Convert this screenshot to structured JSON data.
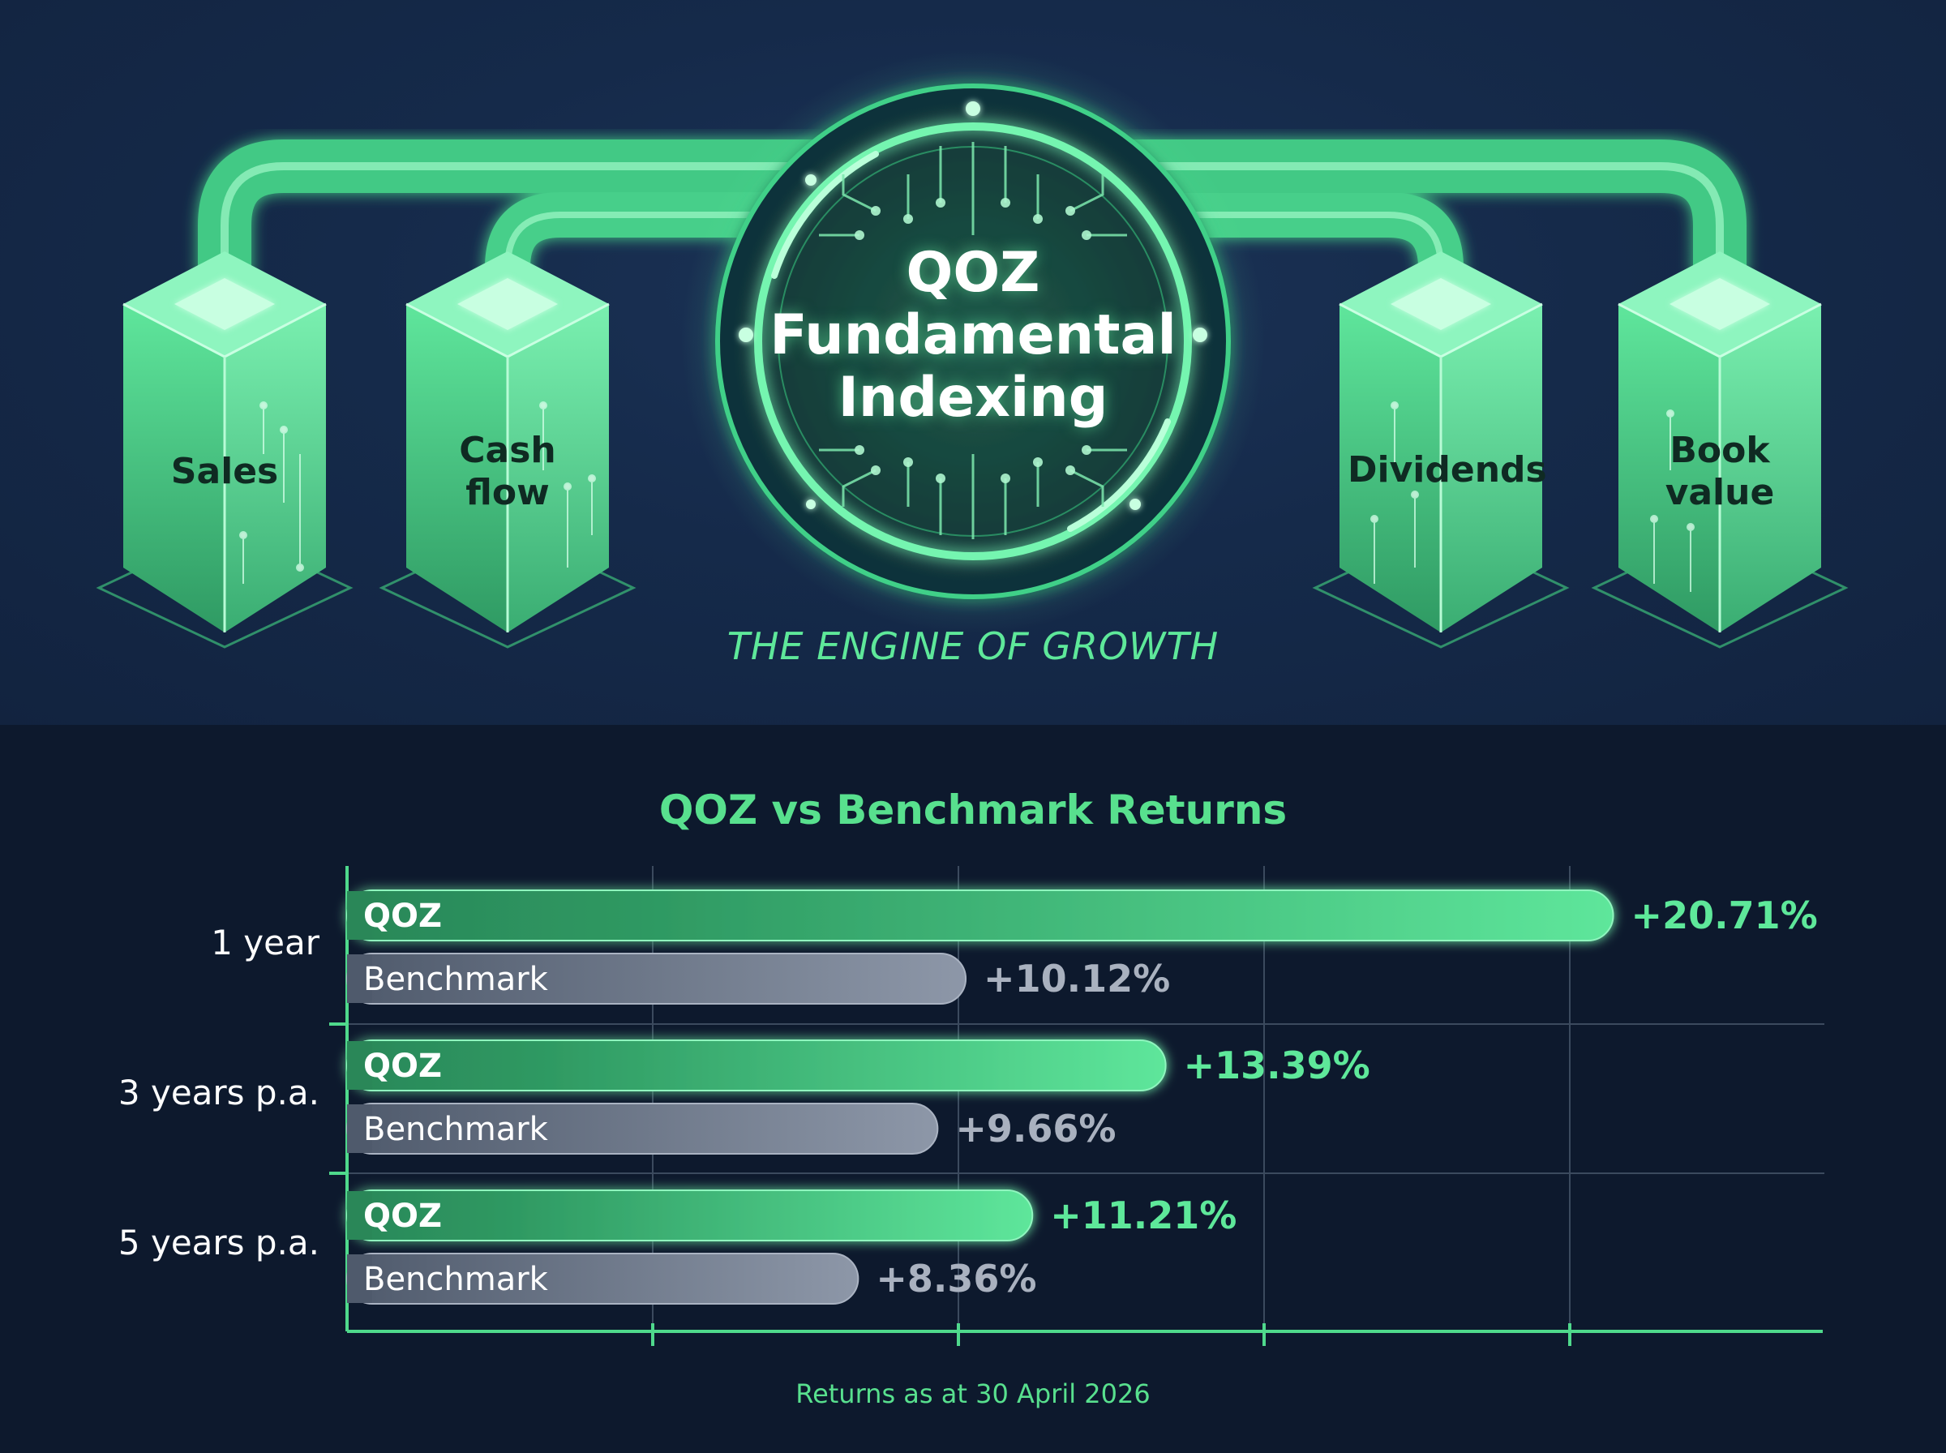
{
  "engine": {
    "title_lines": [
      "QOZ",
      "Fundamental",
      "Indexing"
    ],
    "tagline": "THE ENGINE OF GROWTH",
    "pillars": [
      {
        "lines": [
          "Sales"
        ]
      },
      {
        "lines": [
          "Cash",
          "flow"
        ]
      },
      {
        "lines": [
          "Dividends"
        ]
      },
      {
        "lines": [
          "Book",
          "value"
        ]
      }
    ]
  },
  "colors": {
    "qoz_bar": "#4fd98c",
    "benchmark_bar": "#8a94a6",
    "accent": "#5ee89a",
    "panel_top": "#152a4a",
    "panel_bottom": "#0d192d"
  },
  "chart_data": {
    "type": "bar",
    "orientation": "horizontal",
    "title": "QOZ vs Benchmark Returns",
    "note": "Returns as at 30 April 2026",
    "categories": [
      "1 year",
      "3 years p.a.",
      "5 years p.a."
    ],
    "series": [
      {
        "name": "QOZ",
        "values": [
          20.71,
          13.39,
          11.21
        ],
        "labels": [
          "+20.71%",
          "+13.39%",
          "+11.21%"
        ]
      },
      {
        "name": "Benchmark",
        "values": [
          10.12,
          9.66,
          8.36
        ],
        "labels": [
          "+10.12%",
          "+9.66%",
          "+8.36%"
        ]
      }
    ],
    "xlim": [
      0,
      24
    ],
    "grid": true
  }
}
